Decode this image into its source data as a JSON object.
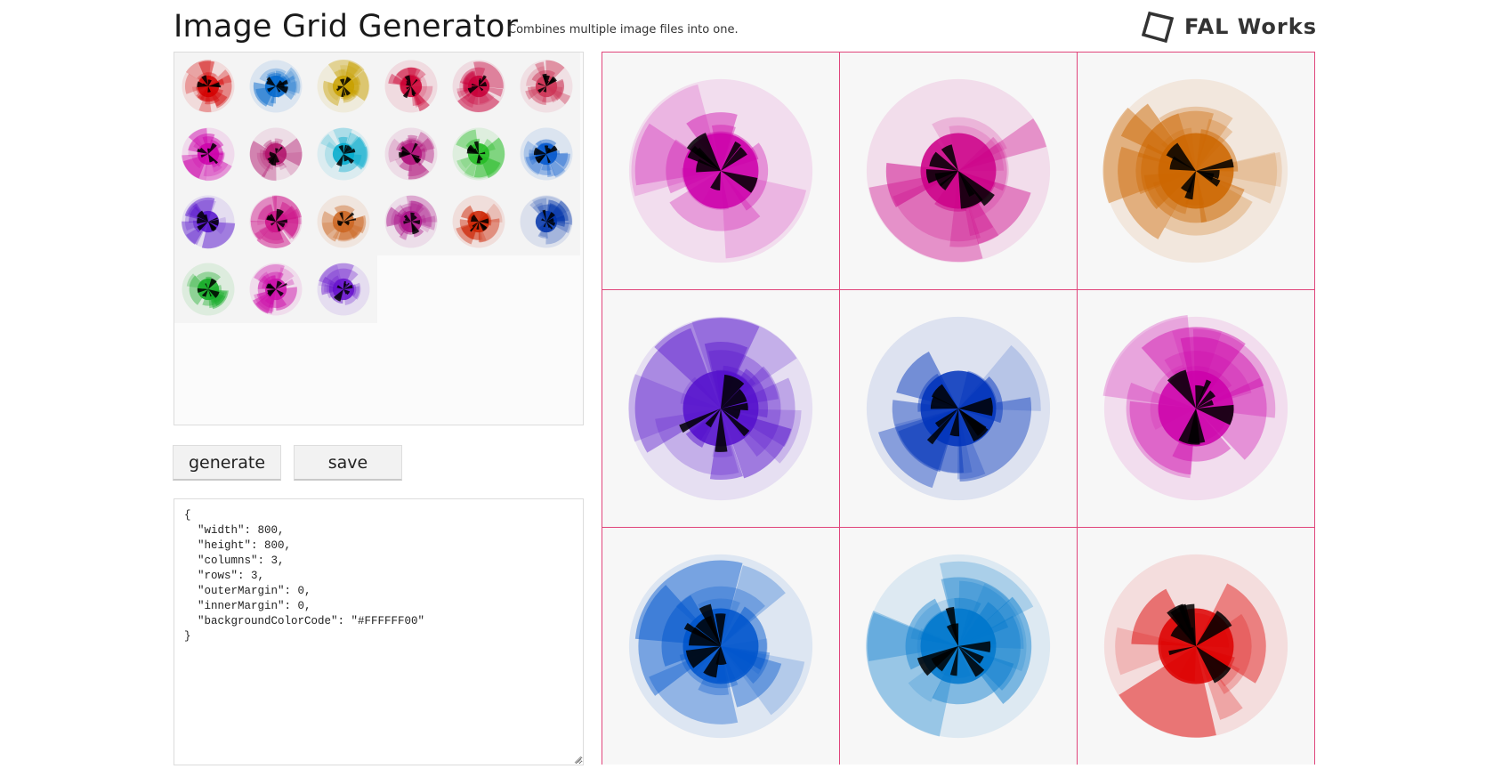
{
  "header": {
    "title": "Image Grid Generator",
    "subtitle": "Combines multiple image files into one.",
    "brand": "FAL Works",
    "brand_icon": "fal-works-logo-icon"
  },
  "thumbnails": {
    "columns": 6,
    "count": 21,
    "items": [
      {
        "name": "thumb-red-1",
        "color": "#d40000"
      },
      {
        "name": "thumb-blue-1",
        "color": "#0066cc"
      },
      {
        "name": "thumb-gold-1",
        "color": "#c8a000"
      },
      {
        "name": "thumb-crimson-1",
        "color": "#cc0033"
      },
      {
        "name": "thumb-crimson-2",
        "color": "#c8003a"
      },
      {
        "name": "thumb-pinkred-1",
        "color": "#cc3355"
      },
      {
        "name": "thumb-magenta-1",
        "color": "#cc00aa"
      },
      {
        "name": "thumb-magenta-2",
        "color": "#b0106a"
      },
      {
        "name": "thumb-cyan-1",
        "color": "#00aacc"
      },
      {
        "name": "thumb-magenta-3",
        "color": "#b0107a"
      },
      {
        "name": "thumb-green-1",
        "color": "#22bb22"
      },
      {
        "name": "thumb-blue-2",
        "color": "#0055cc"
      },
      {
        "name": "thumb-violet-1",
        "color": "#5511cc"
      },
      {
        "name": "thumb-magenta-4",
        "color": "#cc1188"
      },
      {
        "name": "thumb-orange-1",
        "color": "#cc6622"
      },
      {
        "name": "thumb-magenta-5",
        "color": "#aa1188"
      },
      {
        "name": "thumb-red-2",
        "color": "#cc2200"
      },
      {
        "name": "thumb-navy-1",
        "color": "#0033aa"
      },
      {
        "name": "thumb-green-2",
        "color": "#11aa22"
      },
      {
        "name": "thumb-magenta-6",
        "color": "#cc11aa"
      },
      {
        "name": "thumb-violet-2",
        "color": "#6611cc"
      }
    ]
  },
  "buttons": {
    "generate": "generate",
    "save": "save"
  },
  "config_text": "{\n  \"width\": 800,\n  \"height\": 800,\n  \"columns\": 3,\n  \"rows\": 3,\n  \"outerMargin\": 0,\n  \"innerMargin\": 0,\n  \"backgroundColorCode\": \"#FFFFFF00\"\n}",
  "preview": {
    "grid_line_color": "#e0457b",
    "cells": [
      {
        "name": "cell-magenta",
        "color": "#cc00aa"
      },
      {
        "name": "cell-magenta-bowtie",
        "color": "#cc0088"
      },
      {
        "name": "cell-orange",
        "color": "#cc6600"
      },
      {
        "name": "cell-violet",
        "color": "#5511cc"
      },
      {
        "name": "cell-blue-dark",
        "color": "#0033bb"
      },
      {
        "name": "cell-magenta-2",
        "color": "#cc00aa"
      },
      {
        "name": "cell-blue",
        "color": "#0055cc"
      },
      {
        "name": "cell-cyan-blue",
        "color": "#0077cc"
      },
      {
        "name": "cell-red",
        "color": "#dd0000"
      }
    ]
  }
}
